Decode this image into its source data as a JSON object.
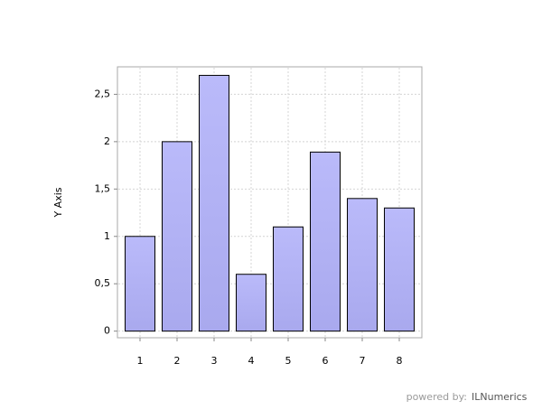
{
  "chart_data": {
    "type": "bar",
    "y_label": "Y Axis",
    "categories": [
      "1",
      "2",
      "3",
      "4",
      "5",
      "6",
      "7",
      "8"
    ],
    "values": [
      1,
      2,
      2.7,
      0.6,
      1.1,
      1.89,
      1.4,
      1.3
    ],
    "color": "#b4b4f6",
    "ylim": [
      -0.07,
      2.79
    ],
    "yticks": [
      0,
      {
        "value": 0.5,
        "label": "0,5"
      },
      1,
      {
        "value": 1.5,
        "label": "1,5"
      },
      2,
      {
        "value": 2.5,
        "label": "2,5"
      }
    ],
    "grid": true
  },
  "footer": {
    "prefix": "powered by:",
    "brand": "ILNumerics"
  }
}
